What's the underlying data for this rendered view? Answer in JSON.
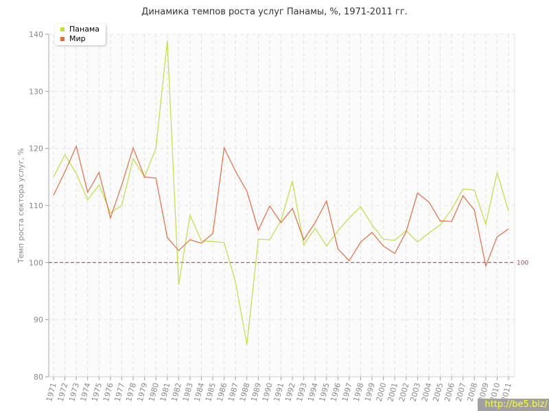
{
  "chart_data": {
    "type": "line",
    "title": "Динамика темпов роста услуг Панамы, %, 1971-2011 гг.",
    "ylabel": "Темп роста сектора услуг, %",
    "xlabel": "",
    "ylim": [
      80,
      140
    ],
    "yticks": [
      80,
      90,
      100,
      110,
      120,
      130,
      140
    ],
    "grid": true,
    "legend": "top-left",
    "x": [
      1971,
      1972,
      1973,
      1974,
      1975,
      1976,
      1977,
      1978,
      1979,
      1980,
      1981,
      1982,
      1983,
      1984,
      1985,
      1986,
      1987,
      1988,
      1989,
      1990,
      1991,
      1992,
      1993,
      1994,
      1995,
      1996,
      1997,
      1998,
      1999,
      2000,
      2001,
      2002,
      2003,
      2004,
      2005,
      2006,
      2007,
      2008,
      2009,
      2010,
      2011
    ],
    "series": [
      {
        "name": "Панама",
        "color": "#c2de3c",
        "values": [
          115.0,
          118.9,
          115.6,
          111.0,
          113.6,
          108.7,
          110.0,
          118.2,
          115.0,
          120.0,
          138.9,
          96.1,
          108.3,
          103.8,
          103.7,
          103.5,
          96.6,
          85.6,
          104.1,
          104.0,
          107.4,
          114.3,
          103.1,
          106.0,
          102.9,
          105.6,
          107.8,
          109.8,
          106.6,
          104.1,
          103.9,
          105.6,
          103.6,
          105.2,
          106.6,
          109.3,
          112.9,
          112.7,
          106.7,
          115.8,
          109.0
        ]
      },
      {
        "name": "Мир",
        "color": "#e8693a",
        "values": [
          111.8,
          115.9,
          120.4,
          112.3,
          115.8,
          107.8,
          113.6,
          120.1,
          115.0,
          114.8,
          104.4,
          102.1,
          104.0,
          103.4,
          105.1,
          120.1,
          116.0,
          112.5,
          105.7,
          109.9,
          107.0,
          109.5,
          104.0,
          107.0,
          110.8,
          102.4,
          100.3,
          103.6,
          105.3,
          102.9,
          101.6,
          105.4,
          112.2,
          110.6,
          107.3,
          107.2,
          111.7,
          109.2,
          99.4,
          104.5,
          105.9
        ]
      }
    ],
    "reference_line": {
      "value": 100,
      "label": "100",
      "color": "#a0485a"
    }
  },
  "watermark": "http://be5.biz/"
}
